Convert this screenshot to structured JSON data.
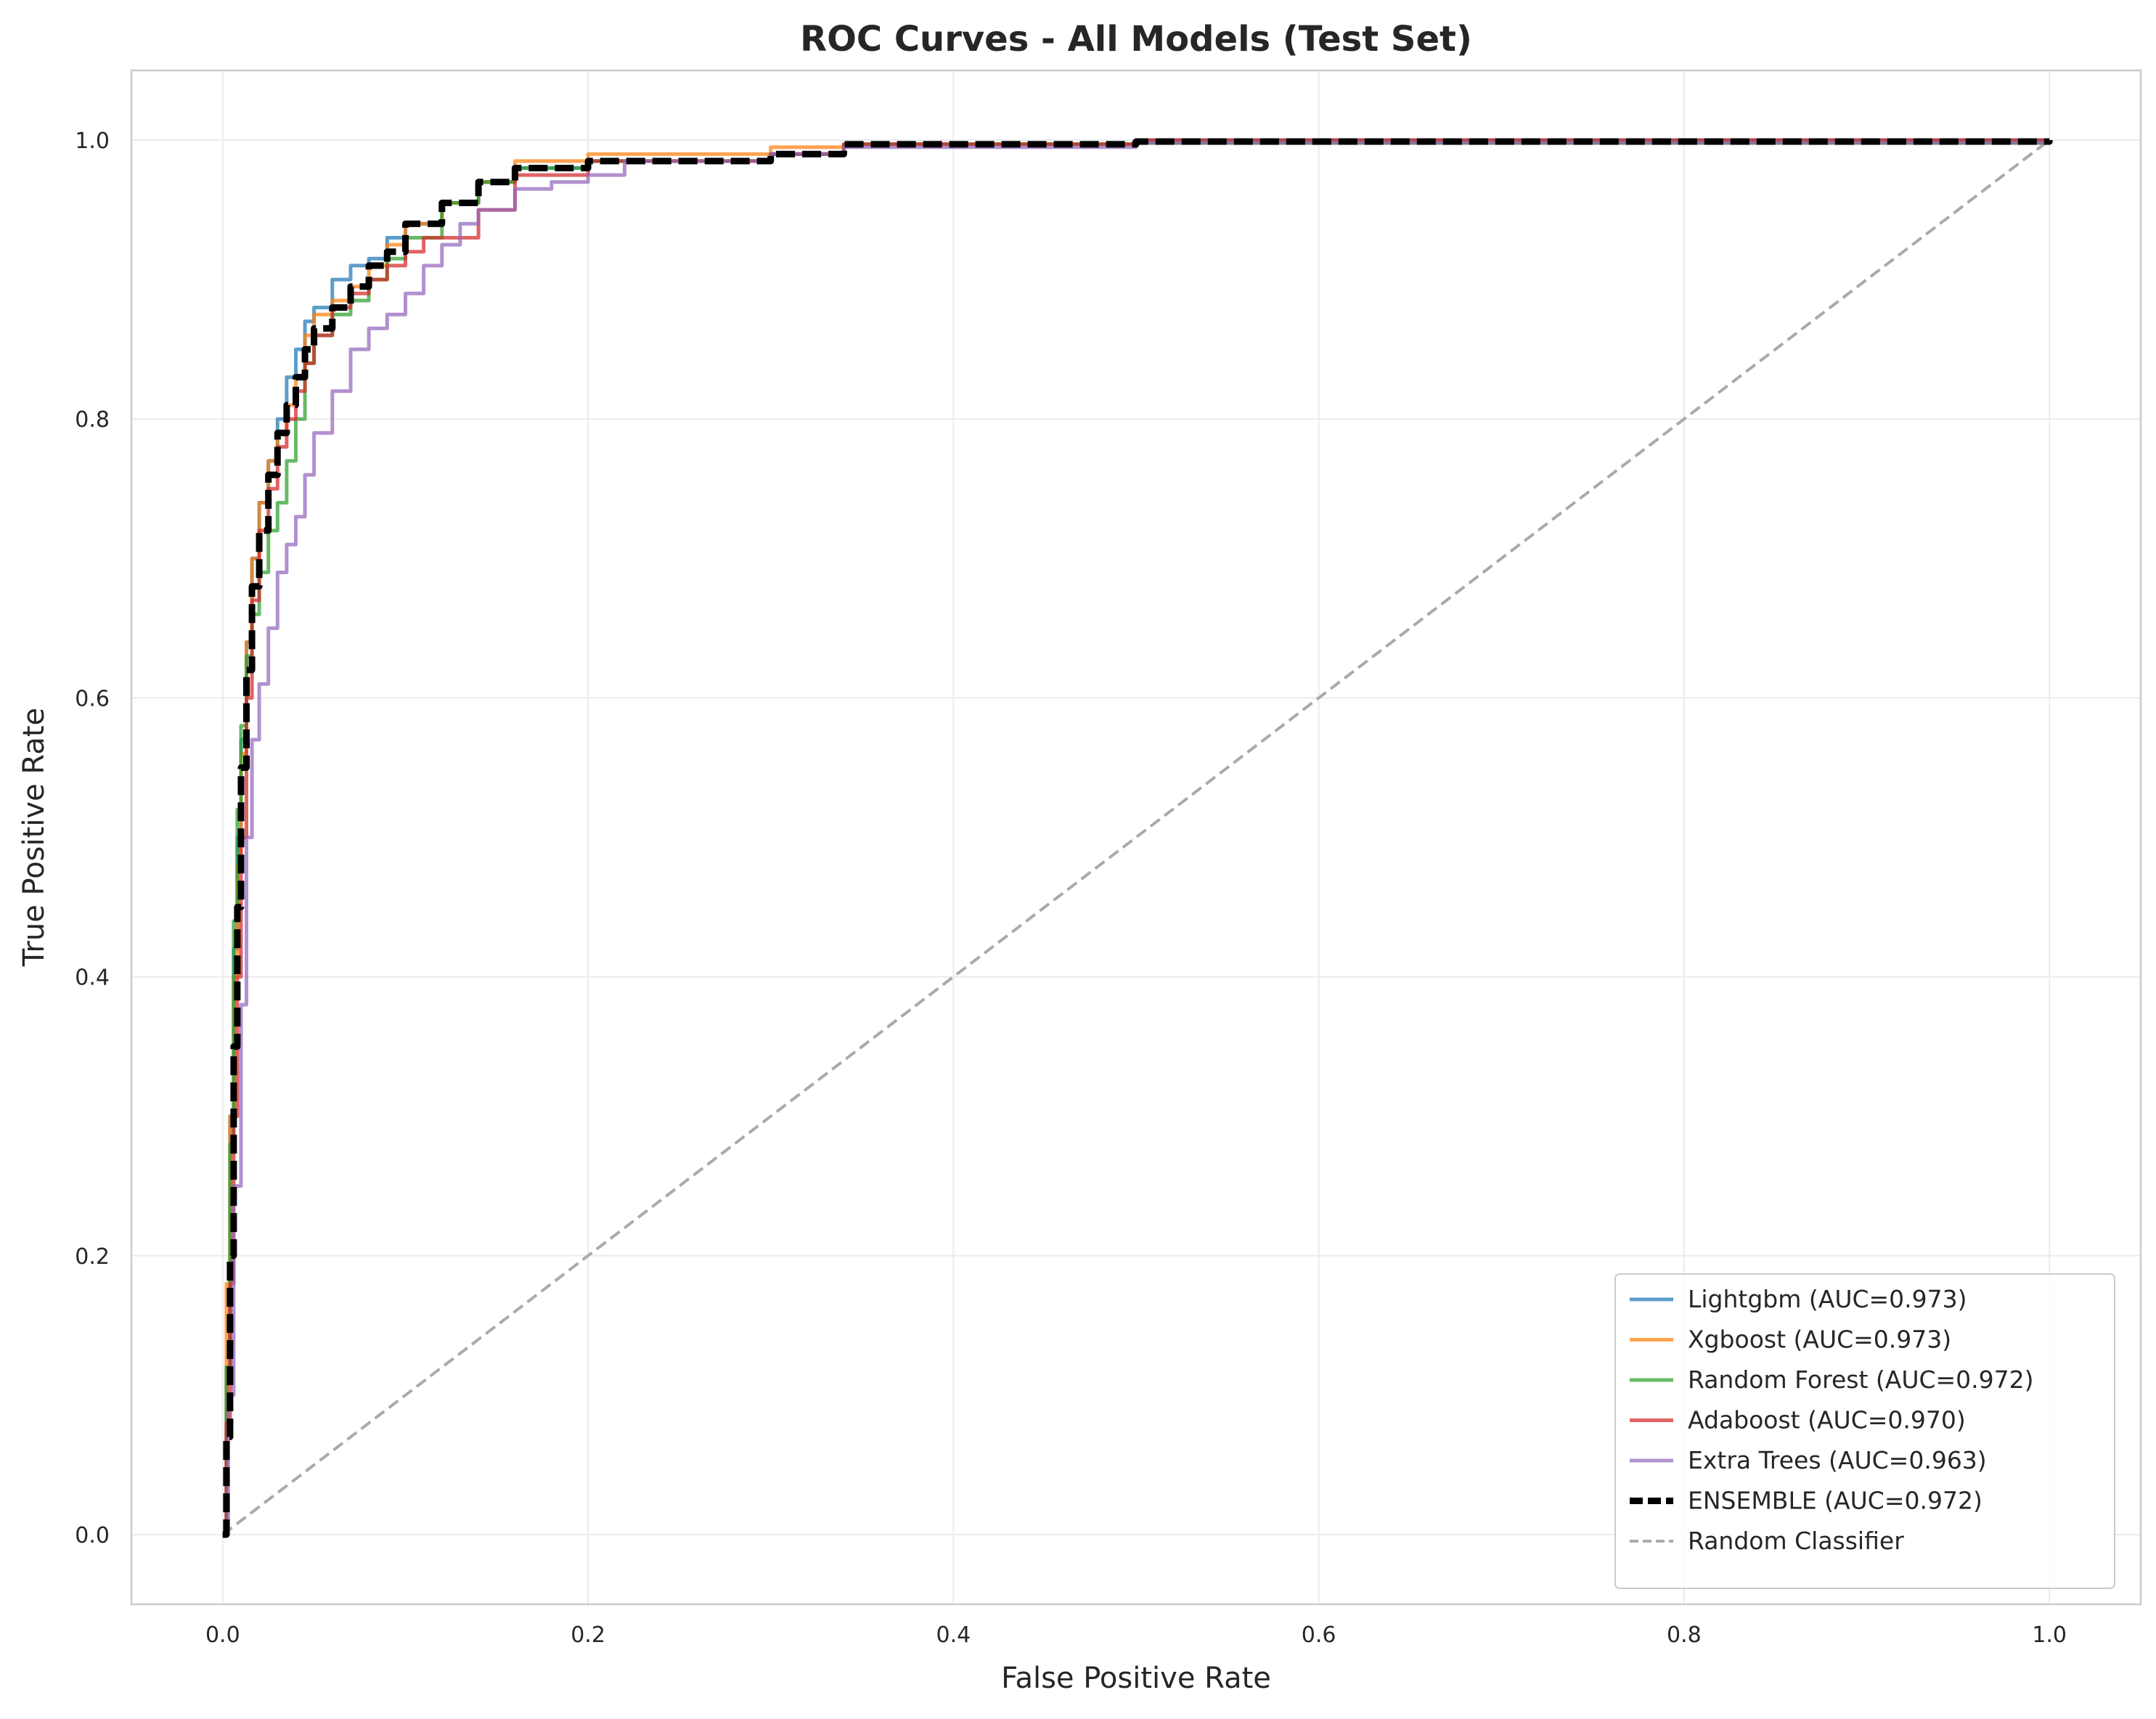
{
  "chart_data": {
    "type": "line",
    "title": "ROC Curves - All Models (Test Set)",
    "xlabel": "False Positive Rate",
    "ylabel": "True Positive Rate",
    "xlim": [
      -0.05,
      1.05
    ],
    "ylim": [
      -0.05,
      1.05
    ],
    "xticks": [
      0.0,
      0.2,
      0.4,
      0.6,
      0.8,
      1.0
    ],
    "yticks": [
      0.0,
      0.2,
      0.4,
      0.6,
      0.8,
      1.0
    ],
    "xtick_labels": [
      "0.0",
      "0.2",
      "0.4",
      "0.6",
      "0.8",
      "1.0"
    ],
    "ytick_labels": [
      "0.0",
      "0.2",
      "0.4",
      "0.6",
      "0.8",
      "1.0"
    ],
    "grid": true,
    "legend_position": "bottom-right",
    "series": [
      {
        "name": "Lightgbm (AUC=0.973)",
        "color": "#1f77b4",
        "style": "solid",
        "x": [
          0,
          0.002,
          0.004,
          0.006,
          0.008,
          0.01,
          0.013,
          0.016,
          0.02,
          0.025,
          0.03,
          0.035,
          0.04,
          0.045,
          0.05,
          0.06,
          0.07,
          0.08,
          0.09,
          0.1,
          0.12,
          0.14,
          0.16,
          0.2,
          0.3,
          0.34,
          0.5,
          1.0
        ],
        "y": [
          0,
          0.12,
          0.3,
          0.42,
          0.5,
          0.57,
          0.64,
          0.7,
          0.74,
          0.77,
          0.8,
          0.83,
          0.85,
          0.87,
          0.88,
          0.9,
          0.91,
          0.915,
          0.93,
          0.94,
          0.955,
          0.97,
          0.98,
          0.985,
          0.99,
          0.997,
          1.0,
          1.0
        ]
      },
      {
        "name": "Xgboost (AUC=0.973)",
        "color": "#ff7f0e",
        "style": "solid",
        "x": [
          0,
          0.002,
          0.004,
          0.006,
          0.008,
          0.01,
          0.013,
          0.016,
          0.02,
          0.025,
          0.03,
          0.035,
          0.04,
          0.045,
          0.05,
          0.06,
          0.07,
          0.08,
          0.09,
          0.1,
          0.12,
          0.14,
          0.16,
          0.2,
          0.3,
          0.34,
          0.5,
          1.0
        ],
        "y": [
          0,
          0.18,
          0.3,
          0.4,
          0.48,
          0.56,
          0.64,
          0.7,
          0.74,
          0.77,
          0.79,
          0.81,
          0.83,
          0.86,
          0.875,
          0.885,
          0.895,
          0.91,
          0.925,
          0.94,
          0.955,
          0.97,
          0.985,
          0.99,
          0.995,
          0.997,
          0.998,
          1.0
        ]
      },
      {
        "name": "Random Forest (AUC=0.972)",
        "color": "#2ca02c",
        "style": "solid",
        "x": [
          0,
          0.002,
          0.004,
          0.006,
          0.008,
          0.01,
          0.013,
          0.016,
          0.02,
          0.025,
          0.03,
          0.035,
          0.04,
          0.045,
          0.05,
          0.06,
          0.07,
          0.08,
          0.09,
          0.1,
          0.12,
          0.14,
          0.16,
          0.2,
          0.3,
          0.34,
          0.5,
          1.0
        ],
        "y": [
          0,
          0.12,
          0.28,
          0.44,
          0.52,
          0.58,
          0.63,
          0.66,
          0.69,
          0.72,
          0.74,
          0.77,
          0.8,
          0.84,
          0.86,
          0.875,
          0.885,
          0.9,
          0.915,
          0.93,
          0.955,
          0.97,
          0.98,
          0.985,
          0.99,
          0.997,
          0.998,
          1.0
        ]
      },
      {
        "name": "Adaboost (AUC=0.970)",
        "color": "#d62728",
        "style": "solid",
        "x": [
          0,
          0.002,
          0.004,
          0.006,
          0.008,
          0.01,
          0.013,
          0.016,
          0.02,
          0.025,
          0.03,
          0.035,
          0.04,
          0.045,
          0.05,
          0.06,
          0.07,
          0.08,
          0.09,
          0.1,
          0.11,
          0.12,
          0.14,
          0.16,
          0.2,
          0.3,
          0.34,
          0.5,
          1.0
        ],
        "y": [
          0,
          0.08,
          0.18,
          0.3,
          0.4,
          0.5,
          0.6,
          0.67,
          0.72,
          0.75,
          0.78,
          0.8,
          0.82,
          0.84,
          0.86,
          0.88,
          0.89,
          0.9,
          0.91,
          0.92,
          0.93,
          0.93,
          0.95,
          0.975,
          0.985,
          0.99,
          0.997,
          1.0,
          1.0
        ]
      },
      {
        "name": "Extra Trees (AUC=0.963)",
        "color": "#9467bd",
        "style": "solid",
        "x": [
          0,
          0.003,
          0.006,
          0.01,
          0.013,
          0.016,
          0.02,
          0.025,
          0.03,
          0.035,
          0.04,
          0.045,
          0.05,
          0.06,
          0.07,
          0.08,
          0.09,
          0.1,
          0.11,
          0.12,
          0.13,
          0.14,
          0.16,
          0.18,
          0.2,
          0.22,
          0.3,
          0.34,
          0.5,
          1.0
        ],
        "y": [
          0,
          0.1,
          0.25,
          0.38,
          0.5,
          0.57,
          0.61,
          0.65,
          0.69,
          0.71,
          0.73,
          0.76,
          0.79,
          0.82,
          0.85,
          0.865,
          0.875,
          0.89,
          0.91,
          0.925,
          0.94,
          0.95,
          0.965,
          0.97,
          0.975,
          0.985,
          0.99,
          0.995,
          0.998,
          1.0
        ]
      },
      {
        "name": "ENSEMBLE (AUC=0.972)",
        "color": "#000000",
        "style": "dashed",
        "x": [
          0,
          0.002,
          0.004,
          0.006,
          0.008,
          0.01,
          0.013,
          0.016,
          0.02,
          0.025,
          0.03,
          0.035,
          0.04,
          0.045,
          0.05,
          0.06,
          0.07,
          0.08,
          0.09,
          0.1,
          0.12,
          0.14,
          0.16,
          0.2,
          0.3,
          0.34,
          0.5,
          1.0
        ],
        "y": [
          0,
          0.07,
          0.2,
          0.35,
          0.45,
          0.55,
          0.62,
          0.68,
          0.72,
          0.76,
          0.79,
          0.81,
          0.83,
          0.85,
          0.865,
          0.88,
          0.895,
          0.91,
          0.92,
          0.94,
          0.955,
          0.97,
          0.98,
          0.985,
          0.99,
          0.997,
          0.999,
          1.0
        ]
      },
      {
        "name": "Random Classifier",
        "color": "#aaaaaa",
        "style": "dashed-thin",
        "x": [
          0,
          1.0
        ],
        "y": [
          0,
          1.0
        ]
      }
    ]
  }
}
